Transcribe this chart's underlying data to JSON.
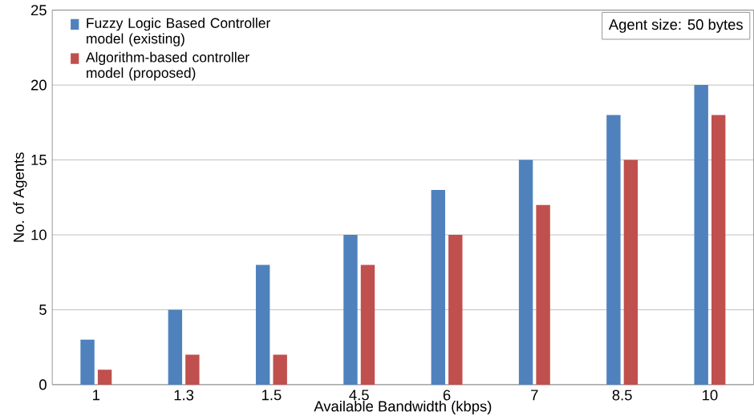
{
  "chart_data": {
    "type": "bar",
    "xlabel": "Available Bandwidth (kbps)",
    "ylabel": "No. of Agents",
    "categories": [
      "1",
      "1.3",
      "1.5",
      "4.5",
      "6",
      "7",
      "8.5",
      "10"
    ],
    "series": [
      {
        "name": "Fuzzy Logic Based Controller model (existing)",
        "color": "#4f81bd",
        "values": [
          3,
          5,
          8,
          10,
          13,
          15,
          18,
          20
        ]
      },
      {
        "name": "Algorithm-based controller model (proposed)",
        "color": "#c0504d",
        "values": [
          1,
          2,
          2,
          8,
          10,
          12,
          15,
          18
        ]
      }
    ],
    "ylim": [
      0,
      25
    ],
    "yticks": [
      0,
      5,
      10,
      15,
      20,
      25
    ],
    "grid": "y",
    "legend": "top left",
    "annotations": [
      "Agent size: 50 bytes"
    ]
  }
}
